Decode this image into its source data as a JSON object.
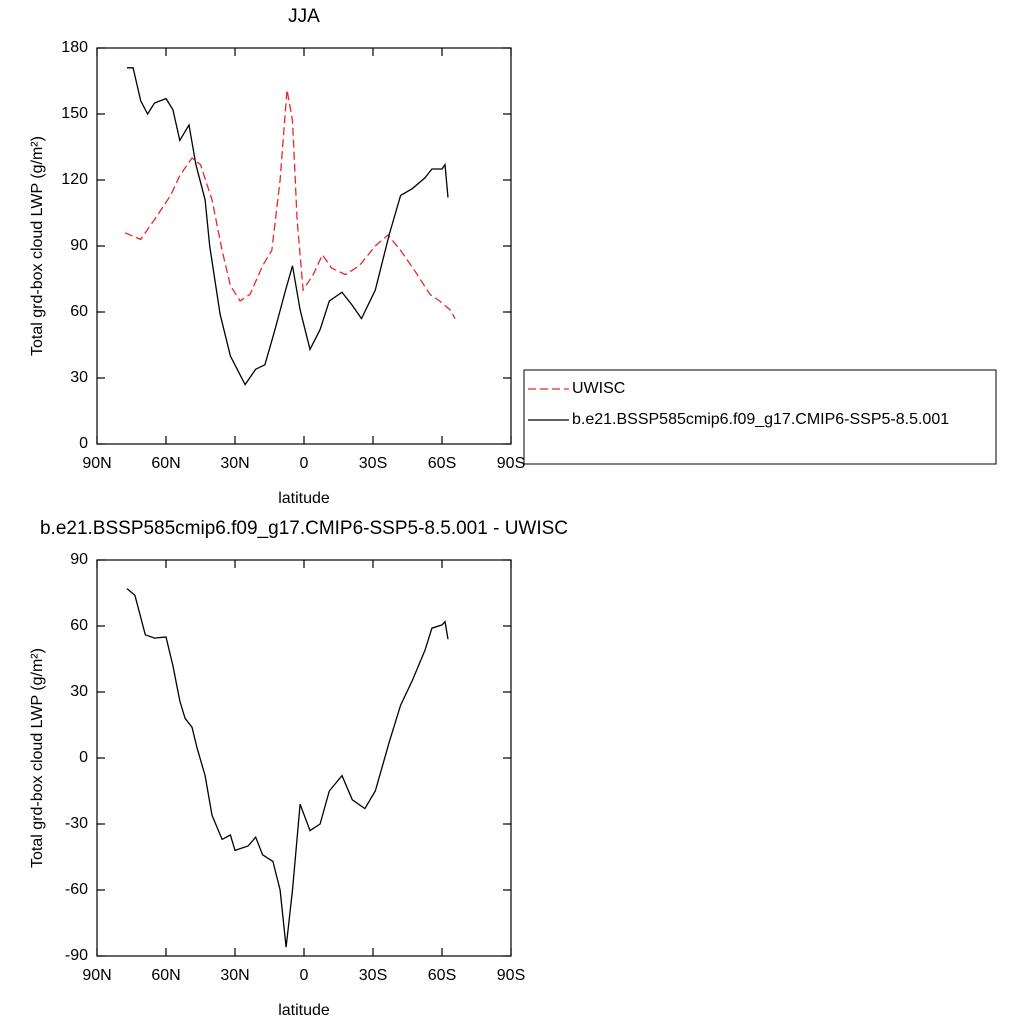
{
  "chart_data": [
    {
      "type": "line",
      "title": "JJA",
      "xlabel": "latitude",
      "ylabel": "Total grd-box cloud LWP (g/m²)",
      "xlim": [
        90,
        -90
      ],
      "ylim": [
        0,
        180
      ],
      "xticks": [
        {
          "value": 90,
          "label": "90N"
        },
        {
          "value": 60,
          "label": "60N"
        },
        {
          "value": 30,
          "label": "30N"
        },
        0,
        {
          "value": -30,
          "label": "30S"
        },
        {
          "value": -60,
          "label": "60S"
        },
        {
          "value": -90,
          "label": "90S"
        }
      ],
      "yticks": [
        0,
        30,
        60,
        90,
        120,
        150,
        180
      ],
      "legend": "right",
      "series": [
        {
          "name": "UWISC",
          "color": "#e8262b",
          "linestyle": "dashed",
          "x": [
            77.8,
            71,
            65,
            58,
            54,
            48.7,
            45,
            40,
            35.6,
            32,
            27.8,
            23.5,
            18,
            14,
            10.4,
            7.4,
            5,
            3,
            0.4,
            -4,
            -8,
            -12,
            -18,
            -24,
            -31,
            -36.5,
            -42,
            -48,
            -54.8,
            -59,
            -63.5,
            -65.7
          ],
          "values": [
            96,
            93,
            102,
            113,
            122,
            130,
            127,
            111,
            88,
            72,
            65,
            68,
            81,
            88,
            120,
            161,
            147,
            102,
            70,
            77,
            86,
            80,
            77,
            81,
            90,
            95,
            88,
            79,
            68,
            65,
            61,
            57
          ]
        },
        {
          "name": "b.e21.BSSP585cmip6.f09_g17.CMIP6-SSP5-8.5.001",
          "color": "#000000",
          "linestyle": "solid",
          "x": [
            77,
            74.3,
            71,
            68,
            65,
            60,
            57,
            54,
            50,
            47,
            43,
            41,
            36.5,
            32,
            25.6,
            21,
            17,
            12.6,
            8,
            5,
            1.7,
            -2.6,
            -7,
            -11,
            -16.5,
            -21,
            -25,
            -31,
            -37,
            -42,
            -47,
            -52.6,
            -55.6,
            -60,
            -61.3,
            -62.6
          ],
          "values": [
            171,
            171,
            156,
            150,
            155,
            157,
            152,
            138,
            145,
            127,
            111,
            90,
            59,
            40,
            27,
            34,
            36,
            52,
            70,
            81,
            61,
            43,
            52,
            65,
            69,
            63,
            57,
            70,
            95,
            113,
            116,
            121,
            125,
            125,
            127,
            112
          ]
        }
      ]
    },
    {
      "type": "line",
      "title": "b.e21.BSSP585cmip6.f09_g17.CMIP6-SSP5-8.5.001 - UWISC",
      "xlabel": "latitude",
      "ylabel": "Total grd-box cloud LWP (g/m²)",
      "xlim": [
        90,
        -90
      ],
      "ylim": [
        -90,
        90
      ],
      "xticks": [
        {
          "value": 90,
          "label": "90N"
        },
        {
          "value": 60,
          "label": "60N"
        },
        {
          "value": 30,
          "label": "30N"
        },
        0,
        {
          "value": -30,
          "label": "30S"
        },
        {
          "value": -60,
          "label": "60S"
        },
        {
          "value": -90,
          "label": "90S"
        }
      ],
      "yticks": [
        -90,
        -60,
        -30,
        0,
        30,
        60,
        90
      ],
      "series": [
        {
          "color": "#000000",
          "linestyle": "solid",
          "x": [
            77,
            73.5,
            69,
            65,
            60,
            57,
            54,
            51.7,
            48.7,
            46.5,
            43,
            40,
            35.6,
            32,
            30,
            24.3,
            21,
            18,
            13.5,
            10.4,
            7.8,
            5,
            1.7,
            -2.6,
            -7,
            -11,
            -16.5,
            -21,
            -26.5,
            -31,
            -37,
            -42,
            -47,
            -52.6,
            -55.6,
            -60,
            -61.3,
            -62.6
          ],
          "values": [
            77,
            74,
            56,
            54.5,
            55,
            42,
            26,
            18,
            14,
            4.5,
            -8,
            -26,
            -37,
            -35,
            -42,
            -40,
            -36,
            -44,
            -47,
            -60,
            -86,
            -60,
            -21,
            -33,
            -30,
            -15,
            -8,
            -19,
            -23,
            -15,
            7,
            24,
            35,
            49,
            59,
            60.5,
            62,
            54
          ]
        }
      ]
    }
  ]
}
